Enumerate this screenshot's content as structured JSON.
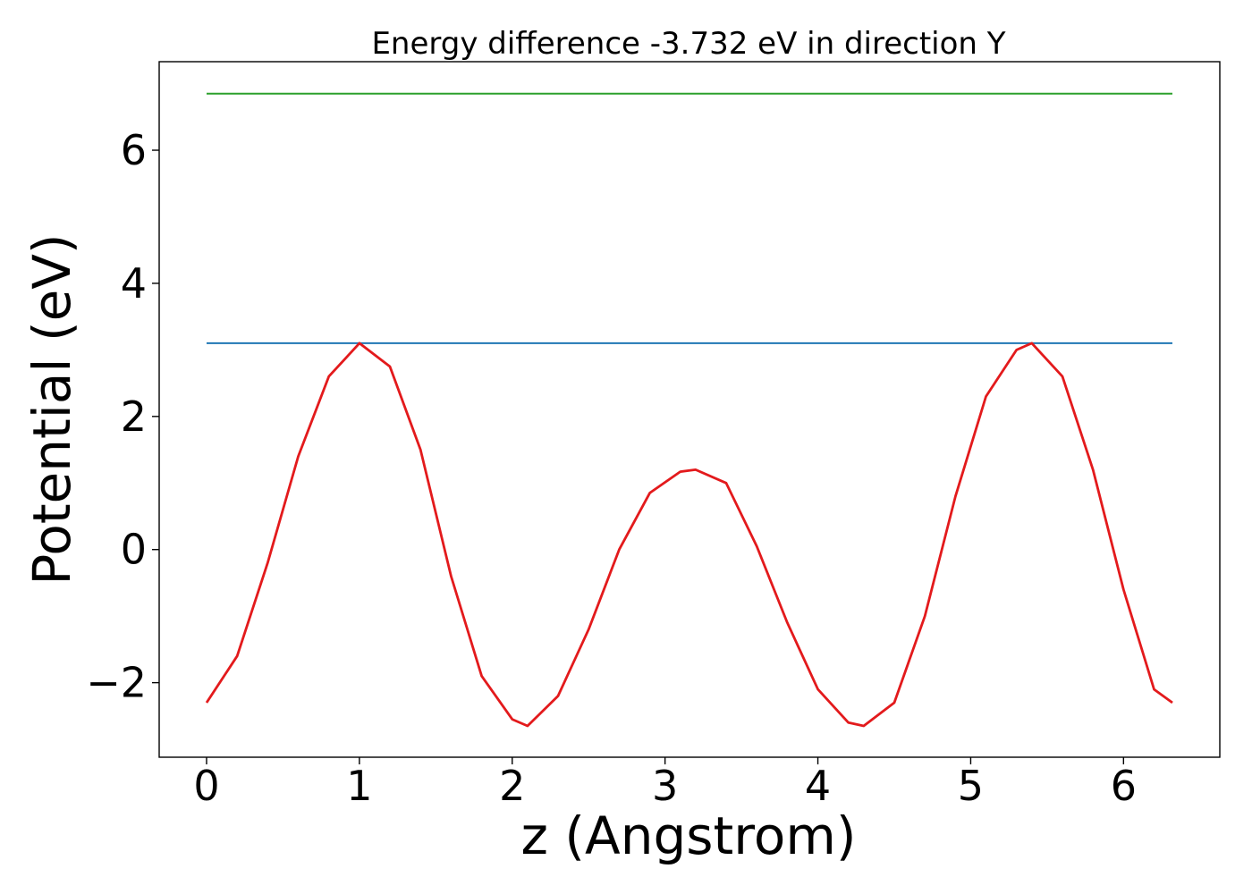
{
  "chart_data": {
    "type": "line",
    "title": "Energy difference -3.732 eV in direction Y",
    "xlabel": "z (Angstrom)",
    "ylabel": "Potential (eV)",
    "xlim": [
      -0.31,
      6.63
    ],
    "ylim": [
      -3.12,
      7.33
    ],
    "x_ticks": [
      {
        "value": 0,
        "label": "0"
      },
      {
        "value": 1,
        "label": "1"
      },
      {
        "value": 2,
        "label": "2"
      },
      {
        "value": 3,
        "label": "3"
      },
      {
        "value": 4,
        "label": "4"
      },
      {
        "value": 5,
        "label": "5"
      },
      {
        "value": 6,
        "label": "6"
      }
    ],
    "y_ticks": [
      {
        "value": -2,
        "label": "−2"
      },
      {
        "value": 0,
        "label": "0"
      },
      {
        "value": 2,
        "label": "2"
      },
      {
        "value": 4,
        "label": "4"
      },
      {
        "value": 6,
        "label": "6"
      }
    ],
    "grid": false,
    "series": [
      {
        "color": "#2ca02c",
        "x": [
          0,
          6.32
        ],
        "y": [
          6.85,
          6.85
        ]
      },
      {
        "color": "#1f77b4",
        "x": [
          0,
          6.32
        ],
        "y": [
          3.1,
          3.1
        ]
      },
      {
        "color": "#e31a1c",
        "x": [
          0.0,
          0.2,
          0.4,
          0.6,
          0.8,
          1.0,
          1.2,
          1.4,
          1.6,
          1.8,
          2.0,
          2.1,
          2.3,
          2.5,
          2.7,
          2.9,
          3.1,
          3.2,
          3.4,
          3.6,
          3.8,
          4.0,
          4.2,
          4.3,
          4.5,
          4.7,
          4.9,
          5.1,
          5.3,
          5.4,
          5.6,
          5.8,
          6.0,
          6.2,
          6.32
        ],
        "y": [
          -2.3,
          -1.6,
          -0.2,
          1.4,
          2.6,
          3.1,
          2.75,
          1.5,
          -0.4,
          -1.9,
          -2.55,
          -2.65,
          -2.2,
          -1.2,
          0.0,
          0.85,
          1.17,
          1.2,
          1.0,
          0.05,
          -1.1,
          -2.1,
          -2.6,
          -2.65,
          -2.3,
          -1.0,
          0.8,
          2.3,
          3.0,
          3.1,
          2.6,
          1.2,
          -0.6,
          -2.1,
          -2.3
        ]
      }
    ]
  }
}
